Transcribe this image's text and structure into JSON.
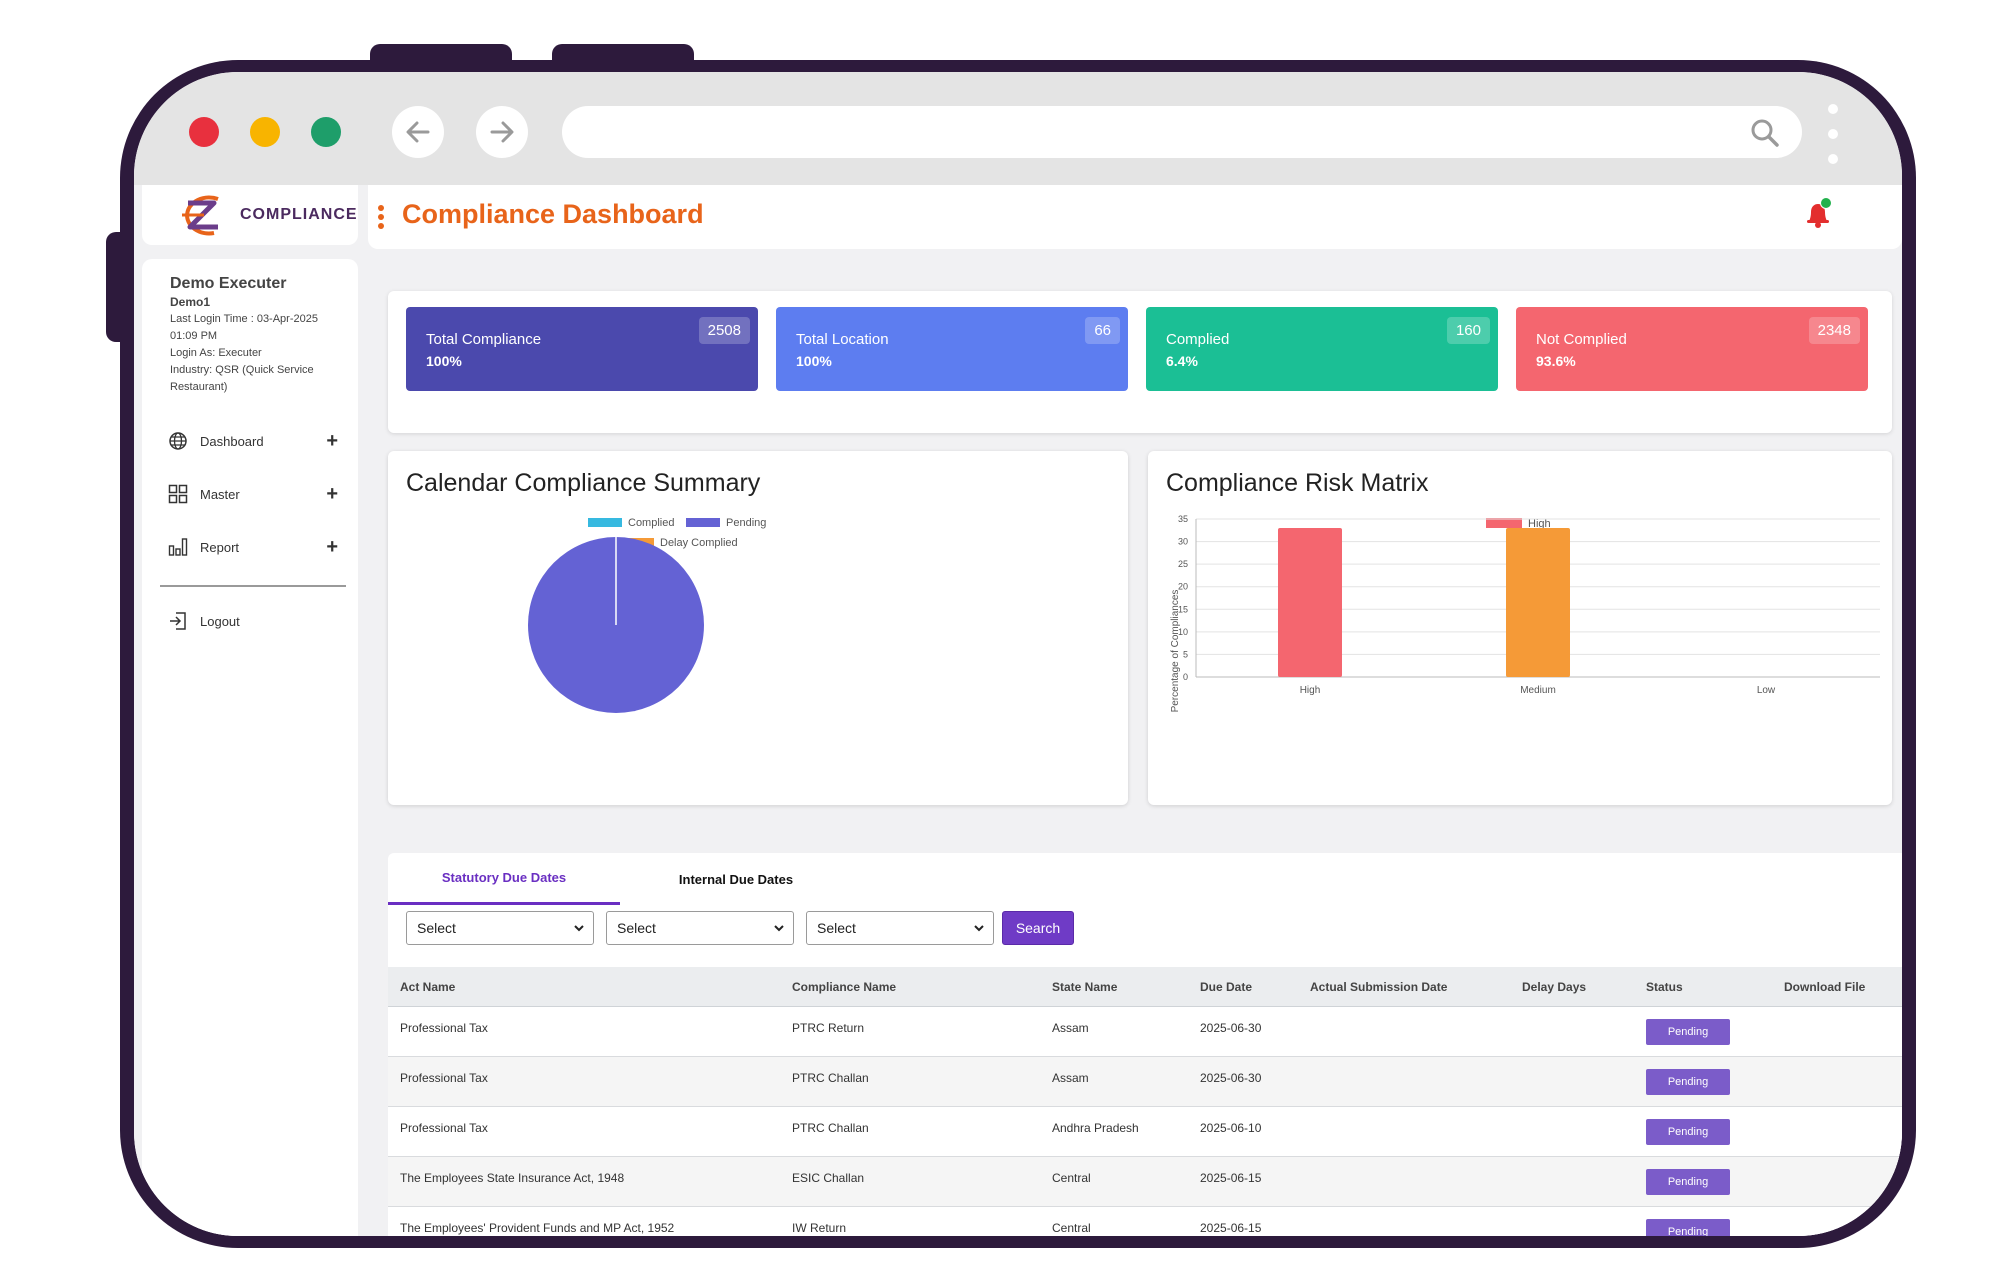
{
  "brand": {
    "logo_text": "COMPLIANCE"
  },
  "user": {
    "name": "Demo Executer",
    "id": "Demo1",
    "last_login": "Last Login Time : 03-Apr-2025 01:09 PM",
    "login_as": "Login As: Executer",
    "industry": "Industry: QSR (Quick Service Restaurant)"
  },
  "sidebar": {
    "items": [
      {
        "label": "Dashboard",
        "icon": "globe-icon",
        "expand": "+"
      },
      {
        "label": "Master",
        "icon": "grid-icon",
        "expand": "+"
      },
      {
        "label": "Report",
        "icon": "bar-chart-icon",
        "expand": "+"
      }
    ],
    "logout": "Logout"
  },
  "header": {
    "title": "Compliance Dashboard"
  },
  "stats": [
    {
      "label": "Total Compliance",
      "pct": "100%",
      "count": "2508",
      "color": "#4b49ad"
    },
    {
      "label": "Total Location",
      "pct": "100%",
      "count": "66",
      "color": "#5d7df0"
    },
    {
      "label": "Complied",
      "pct": "6.4%",
      "count": "160",
      "color": "#1bbf95"
    },
    {
      "label": "Not Complied",
      "pct": "93.6%",
      "count": "2348",
      "color": "#f4666f"
    }
  ],
  "pie_card": {
    "title": "Calendar Compliance Summary",
    "legend": [
      {
        "name": "Complied",
        "color": "#36b9e0"
      },
      {
        "name": "Pending",
        "color": "#6462d4"
      },
      {
        "name": "Delay Complied",
        "color": "#f59a37"
      }
    ]
  },
  "bar_card": {
    "title": "Compliance Risk Matrix",
    "legend": "High",
    "ylabel": "Percentage of Compliances",
    "yticks": [
      "0",
      "5",
      "10",
      "15",
      "20",
      "25",
      "30",
      "35"
    ]
  },
  "chart_data": [
    {
      "type": "pie",
      "title": "Calendar Compliance Summary",
      "labels": [
        "Complied",
        "Pending",
        "Delay Complied"
      ],
      "values": [
        0,
        100,
        0
      ],
      "legend_position": "top"
    },
    {
      "type": "bar",
      "title": "Compliance Risk Matrix",
      "categories": [
        "High",
        "Medium",
        "Low"
      ],
      "series": [
        {
          "name": "High",
          "values": [
            33,
            33,
            0
          ]
        }
      ],
      "bar_colors": [
        "#f4666f",
        "#f59a37",
        "#cccccc"
      ],
      "ylabel": "Percentage of Compliances",
      "ylim": [
        0,
        35
      ],
      "grid": true,
      "legend_position": "top"
    }
  ],
  "tabs": [
    "Statutory Due Dates",
    "Internal Due Dates"
  ],
  "filters": {
    "select1": "Select",
    "select2": "Select",
    "select3": "Select",
    "search": "Search"
  },
  "table": {
    "columns": [
      "Act Name",
      "Compliance Name",
      "State Name",
      "Due Date",
      "Actual Submission Date",
      "Delay Days",
      "Status",
      "Download File"
    ],
    "rows": [
      {
        "act": "Professional Tax",
        "compliance": "PTRC Return",
        "state": "Assam",
        "due": "2025-06-30",
        "status": "Pending"
      },
      {
        "act": "Professional Tax",
        "compliance": "PTRC Challan",
        "state": "Assam",
        "due": "2025-06-30",
        "status": "Pending"
      },
      {
        "act": "Professional Tax",
        "compliance": "PTRC Challan",
        "state": "Andhra Pradesh",
        "due": "2025-06-10",
        "status": "Pending"
      },
      {
        "act": "The Employees State Insurance Act, 1948",
        "compliance": "ESIC Challan",
        "state": "Central",
        "due": "2025-06-15",
        "status": "Pending"
      },
      {
        "act": "The Employees' Provident Funds and MP Act, 1952",
        "compliance": "IW Return",
        "state": "Central",
        "due": "2025-06-15",
        "status": "Pending"
      }
    ]
  }
}
